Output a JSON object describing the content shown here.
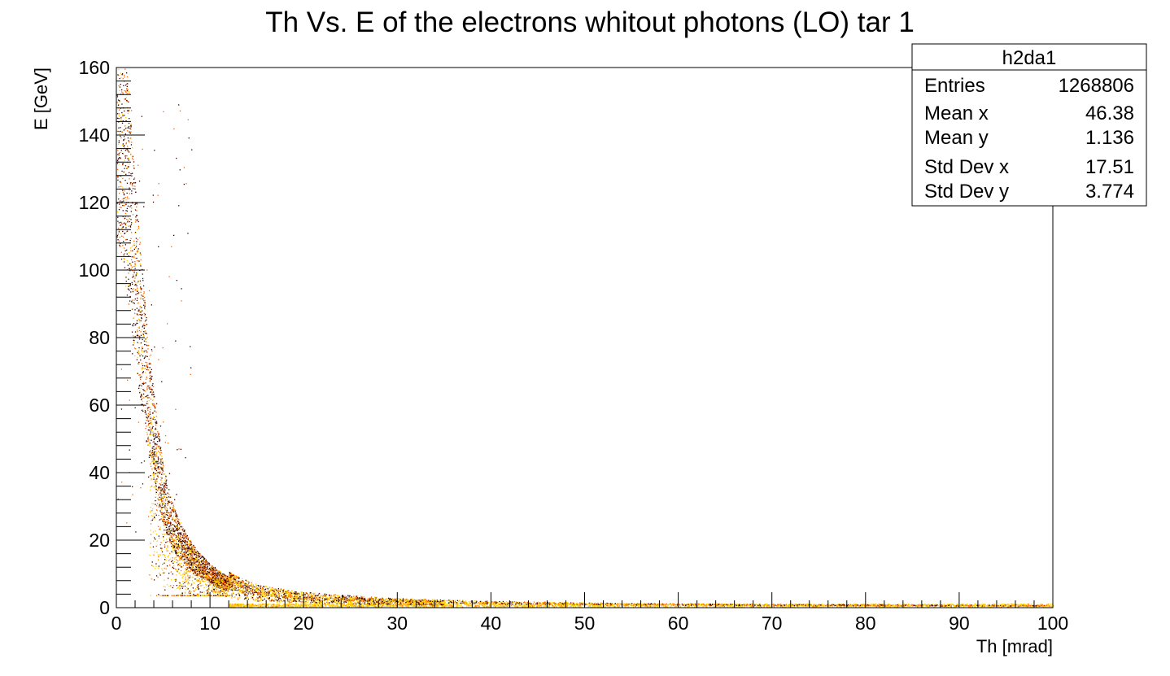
{
  "chart_data": {
    "type": "scatter",
    "title": "Th  Vs. E of the electrons whitout photons (LO) tar 1",
    "xlabel": "Th [mrad]",
    "ylabel": "E [GeV]",
    "xlim": [
      0,
      100
    ],
    "ylim": [
      0,
      160
    ],
    "x_ticks": [
      "0",
      "10",
      "20",
      "30",
      "40",
      "50",
      "60",
      "70",
      "80",
      "90",
      "100"
    ],
    "y_ticks": [
      "0",
      "20",
      "40",
      "60",
      "80",
      "100",
      "120",
      "140",
      "160"
    ],
    "grid": false,
    "colors": {
      "dense": "#ffcc00",
      "medium": "#ff6600",
      "sparse": "#330000"
    },
    "band": [
      {
        "x": 0.2,
        "y": 150
      },
      {
        "x": 1,
        "y": 130
      },
      {
        "x": 2,
        "y": 100
      },
      {
        "x": 3,
        "y": 72
      },
      {
        "x": 4,
        "y": 50
      },
      {
        "x": 5,
        "y": 33
      },
      {
        "x": 6,
        "y": 24
      },
      {
        "x": 8,
        "y": 15
      },
      {
        "x": 10,
        "y": 10
      },
      {
        "x": 12,
        "y": 7
      },
      {
        "x": 15,
        "y": 4.5
      },
      {
        "x": 20,
        "y": 3
      },
      {
        "x": 25,
        "y": 2.3
      },
      {
        "x": 30,
        "y": 1.8
      },
      {
        "x": 40,
        "y": 1.2
      },
      {
        "x": 50,
        "y": 0.9
      },
      {
        "x": 70,
        "y": 0.6
      },
      {
        "x": 100,
        "y": 0.4
      }
    ],
    "legend_position": "top-right"
  },
  "stats": {
    "name": "h2da1",
    "rows": [
      {
        "label": "Entries",
        "value": "1268806"
      },
      {
        "label": "Mean x",
        "value": "46.38"
      },
      {
        "label": "Mean y",
        "value": "1.136"
      },
      {
        "label": "Std Dev x",
        "value": "17.51"
      },
      {
        "label": "Std Dev y",
        "value": "3.774"
      }
    ]
  }
}
